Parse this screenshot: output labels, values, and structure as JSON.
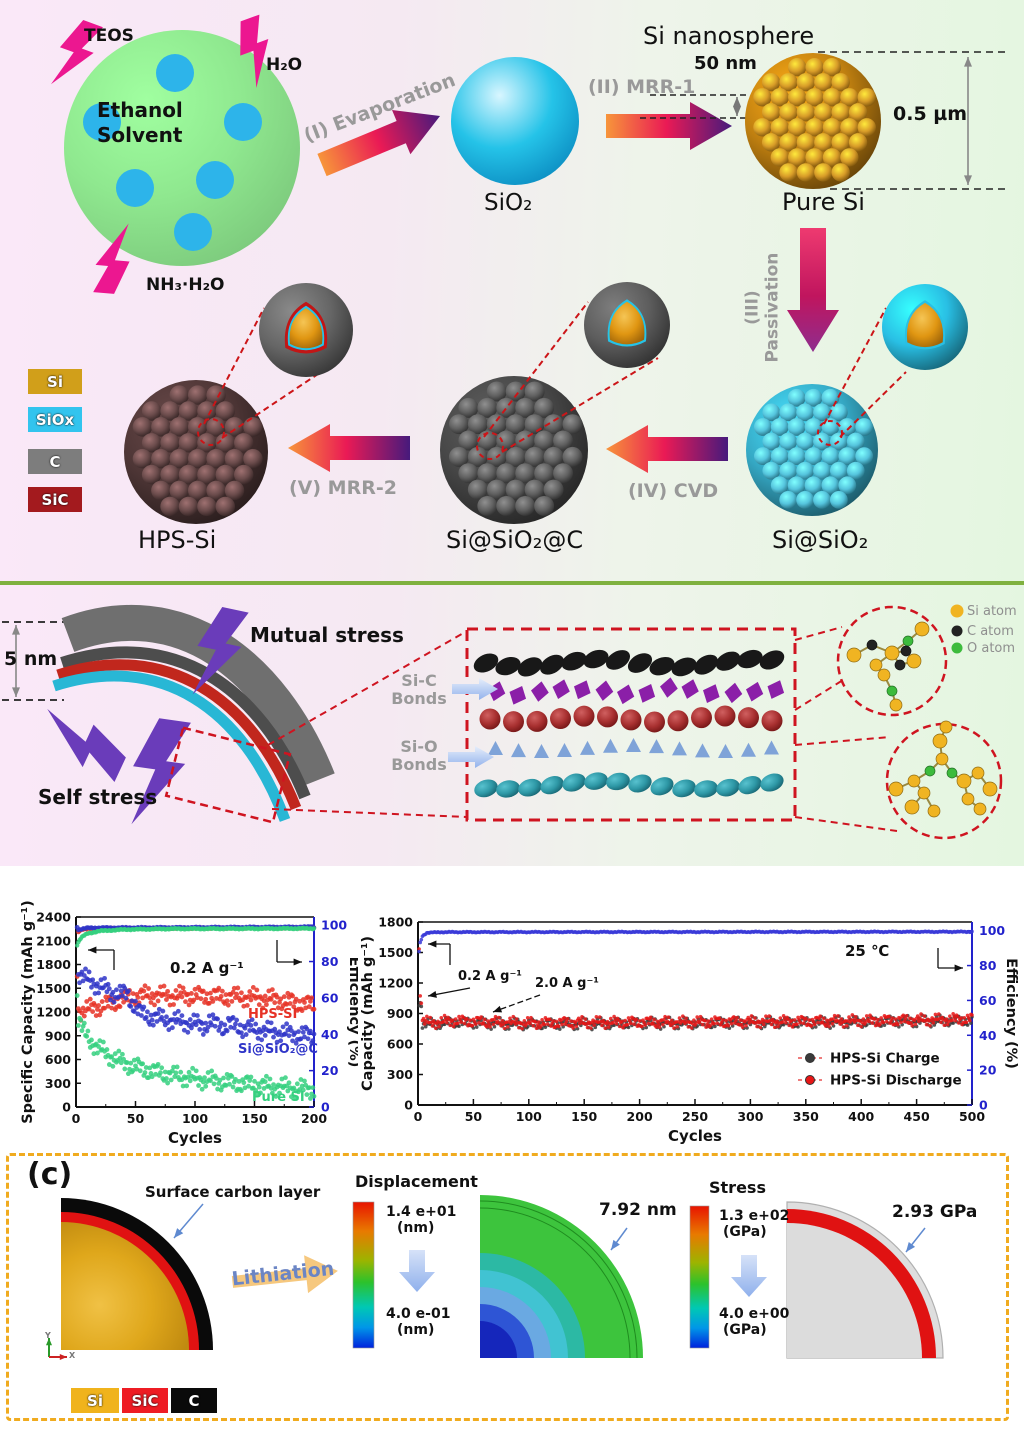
{
  "panel_a": {
    "droplet_label": "Ethanol\nSolvent",
    "reagents": {
      "teos": "TEOS",
      "h2o": "H₂O",
      "nh3": "NH₃·H₂O"
    },
    "steps": {
      "s1": "(I) Evaporation",
      "s2": "(II) MRR-1",
      "s3": "(III) Passivation",
      "s4": "(IV) CVD",
      "s5": "(V) MRR-2"
    },
    "products": {
      "sio2": "SiO₂",
      "pure_si": "Pure Si",
      "si_sio2": "Si@SiO₂",
      "si_sio2_c": "Si@SiO₂@C",
      "hps": "HPS-Si"
    },
    "annotations": {
      "title": "Si nanosphere",
      "shell_thickness": "50 nm",
      "diameter": "0.5 µm"
    },
    "legend": [
      {
        "label": "Si",
        "color": "#d19f1a"
      },
      {
        "label": "SiOx",
        "color": "#32c4ee"
      },
      {
        "label": "C",
        "color": "#7d7d7d"
      },
      {
        "label": "SiC",
        "color": "#a31a1e"
      }
    ],
    "colors": {
      "droplet": "#8fe88f",
      "droplet_dot": "#2db4ea",
      "bolt": "#ec1790",
      "sio2_sphere": "#25c3e8",
      "pure_si_sphere": "#c08010",
      "hps_sphere": "#4e3636",
      "si_sio2_c_sphere": "#464646",
      "si_sio2_sphere": "#35a8c4"
    }
  },
  "panel_b": {
    "thickness": "5 nm",
    "mutual_stress": "Mutual stress",
    "self_stress": "Self stress",
    "bond_sic": "Si-C\nBonds",
    "bond_sio": "Si-O\nBonds",
    "atom_legend": [
      {
        "label": "Si atom",
        "color": "#f0b422"
      },
      {
        "label": "C atom",
        "color": "#222222"
      },
      {
        "label": "O atom",
        "color": "#3dbb3d"
      }
    ]
  },
  "chart_data": [
    {
      "id": "rate-cycling",
      "type": "scatter",
      "xlabel": "Cycles",
      "ylabel": "Specific Capacity (mAh g⁻¹)",
      "y2label": "Efficiency (%)",
      "xlim": [
        0,
        200
      ],
      "xstep": 50,
      "ylim": [
        0,
        2400
      ],
      "ystep": 300,
      "y2lim": [
        0,
        100
      ],
      "y2step": 20,
      "annotation_rate": "0.2 A g⁻¹",
      "legend_position": "in-plot",
      "grid": false,
      "series": [
        {
          "name": "HPS-SI",
          "axis": "left",
          "color": "#e63226",
          "points": [
            [
              1,
              1740
            ],
            [
              2,
              1230
            ],
            [
              5,
              1215
            ],
            [
              10,
              1235
            ],
            [
              15,
              1255
            ],
            [
              20,
              1270
            ],
            [
              25,
              1285
            ],
            [
              30,
              1310
            ],
            [
              35,
              1340
            ],
            [
              40,
              1365
            ],
            [
              45,
              1385
            ],
            [
              50,
              1400
            ],
            [
              60,
              1415
            ],
            [
              70,
              1410
            ],
            [
              80,
              1405
            ],
            [
              90,
              1408
            ],
            [
              100,
              1405
            ],
            [
              110,
              1402
            ],
            [
              120,
              1398
            ],
            [
              130,
              1395
            ],
            [
              140,
              1392
            ],
            [
              150,
              1385
            ],
            [
              160,
              1372
            ],
            [
              170,
              1355
            ],
            [
              180,
              1330
            ],
            [
              190,
              1305
            ],
            [
              200,
              1282
            ]
          ]
        },
        {
          "name": "Si@SiO₂@C",
          "axis": "left",
          "color": "#2f35c8",
          "points": [
            [
              1,
              2260
            ],
            [
              2,
              1700
            ],
            [
              5,
              1655
            ],
            [
              10,
              1605
            ],
            [
              15,
              1565
            ],
            [
              20,
              1530
            ],
            [
              25,
              1495
            ],
            [
              28,
              1460
            ],
            [
              30,
              1430
            ],
            [
              33,
              1445
            ],
            [
              36,
              1435
            ],
            [
              40,
              1425
            ],
            [
              44,
              1415
            ],
            [
              46,
              1330
            ],
            [
              48,
              1300
            ],
            [
              50,
              1290
            ],
            [
              53,
              1200
            ],
            [
              56,
              1170
            ],
            [
              60,
              1150
            ],
            [
              70,
              1120
            ],
            [
              80,
              1095
            ],
            [
              90,
              1075
            ],
            [
              100,
              1050
            ],
            [
              108,
              1025
            ],
            [
              112,
              1085
            ],
            [
              116,
              1050
            ],
            [
              120,
              1035
            ],
            [
              125,
              1010
            ],
            [
              128,
              1055
            ],
            [
              132,
              1030
            ],
            [
              136,
              1012
            ],
            [
              140,
              1000
            ],
            [
              150,
              980
            ],
            [
              160,
              958
            ],
            [
              170,
              940
            ],
            [
              180,
              925
            ],
            [
              190,
              912
            ],
            [
              200,
              895
            ]
          ]
        },
        {
          "name": "Pure SI",
          "axis": "left",
          "color": "#35d07f",
          "points": [
            [
              1,
              1430
            ],
            [
              2,
              1120
            ],
            [
              4,
              1030
            ],
            [
              6,
              965
            ],
            [
              8,
              915
            ],
            [
              10,
              875
            ],
            [
              14,
              810
            ],
            [
              18,
              755
            ],
            [
              22,
              710
            ],
            [
              26,
              668
            ],
            [
              30,
              635
            ],
            [
              35,
              595
            ],
            [
              40,
              560
            ],
            [
              45,
              532
            ],
            [
              50,
              508
            ],
            [
              60,
              465
            ],
            [
              70,
              432
            ],
            [
              80,
              405
            ],
            [
              90,
              382
            ],
            [
              100,
              360
            ],
            [
              110,
              342
            ],
            [
              120,
              325
            ],
            [
              130,
              308
            ],
            [
              140,
              293
            ],
            [
              150,
              280
            ],
            [
              160,
              268
            ],
            [
              170,
              255
            ],
            [
              180,
              243
            ],
            [
              190,
              230
            ],
            [
              200,
              218
            ]
          ]
        },
        {
          "name": "HPS-SI efficiency",
          "axis": "right",
          "color": "#e63226",
          "points": [
            [
              2,
              96.5
            ],
            [
              5,
              97.8
            ],
            [
              20,
              98.2
            ],
            [
              200,
              98.6
            ]
          ]
        },
        {
          "name": "Si@SiO₂@C efficiency",
          "axis": "right",
          "color": "#2f35c8",
          "points": [
            [
              2,
              97.5
            ],
            [
              10,
              98.5
            ],
            [
              200,
              99.0
            ]
          ]
        },
        {
          "name": "Pure SI efficiency",
          "axis": "right",
          "color": "#35d07f",
          "points": [
            [
              1,
              89
            ],
            [
              3,
              92
            ],
            [
              6,
              94
            ],
            [
              10,
              95.5
            ],
            [
              20,
              96.8
            ],
            [
              40,
              97.6
            ],
            [
              80,
              98
            ],
            [
              200,
              98.2
            ]
          ]
        }
      ]
    },
    {
      "id": "long-term-cycling",
      "type": "scatter",
      "xlabel": "Cycles",
      "ylabel": "Capacity (mAh g⁻¹)",
      "y2label": "Efficiency (%)",
      "xlim": [
        0,
        500
      ],
      "xstep": 50,
      "ylim": [
        0,
        1800
      ],
      "ystep": 300,
      "y2lim": [
        0,
        100
      ],
      "y2step": 20,
      "annotation_rate1": "0.2 A g⁻¹",
      "annotation_rate2": "2.0 A g⁻¹",
      "annotation_temp": "25 ℃",
      "grid": false,
      "legend": [
        {
          "label": "HPS-Si Charge",
          "color": "#3a3a3a"
        },
        {
          "label": "HPS-Si Discharge",
          "color": "#e81616"
        }
      ],
      "series": [
        {
          "name": "HPS-Si Charge",
          "axis": "left",
          "color": "#3a3a3a",
          "points": [
            [
              1,
              1020
            ],
            [
              2,
              1000
            ],
            [
              3,
              975
            ],
            [
              4,
              815
            ],
            [
              10,
              795
            ],
            [
              30,
              815
            ],
            [
              60,
              805
            ],
            [
              100,
              795
            ],
            [
              150,
              800
            ],
            [
              200,
              805
            ],
            [
              250,
              805
            ],
            [
              300,
              810
            ],
            [
              350,
              812
            ],
            [
              400,
              818
            ],
            [
              450,
              825
            ],
            [
              500,
              832
            ]
          ]
        },
        {
          "name": "HPS-Si Discharge",
          "axis": "left",
          "color": "#e81616",
          "points": [
            [
              1,
              1530
            ],
            [
              2,
              1085
            ],
            [
              3,
              1055
            ],
            [
              4,
              830
            ],
            [
              10,
              808
            ],
            [
              30,
              828
            ],
            [
              60,
              818
            ],
            [
              100,
              806
            ],
            [
              150,
              812
            ],
            [
              200,
              815
            ],
            [
              250,
              815
            ],
            [
              300,
              820
            ],
            [
              350,
              822
            ],
            [
              400,
              828
            ],
            [
              450,
              836
            ],
            [
              500,
              845
            ]
          ]
        },
        {
          "name": "Efficiency",
          "axis": "right",
          "color": "#3a3ad8",
          "points": [
            [
              1,
              88
            ],
            [
              2,
              93
            ],
            [
              4,
              97
            ],
            [
              8,
              98.8
            ],
            [
              20,
              99.2
            ],
            [
              500,
              99.4
            ]
          ]
        }
      ]
    }
  ],
  "panel_c": {
    "tag": "(c)",
    "surface_label": "Surface carbon layer",
    "lithiation": "Lithiation",
    "axis_icon": {
      "y": "Y",
      "x": "X"
    },
    "displacement": {
      "title": "Displacement",
      "max": "1.4 e+01",
      "max_unit": "(nm)",
      "min": "4.0 e-01",
      "min_unit": "(nm)",
      "value": "7.92 nm"
    },
    "stress": {
      "title": "Stress",
      "max": "1.3 e+02",
      "max_unit": "(GPa)",
      "min": "4.0 e+00",
      "min_unit": "(GPa)",
      "value": "2.93 GPa"
    },
    "legend": [
      {
        "label": "Si",
        "color": "#f0b31c"
      },
      {
        "label": "SiC",
        "color": "#ee1c24"
      },
      {
        "label": "C",
        "color": "#0a0a0a"
      }
    ]
  }
}
